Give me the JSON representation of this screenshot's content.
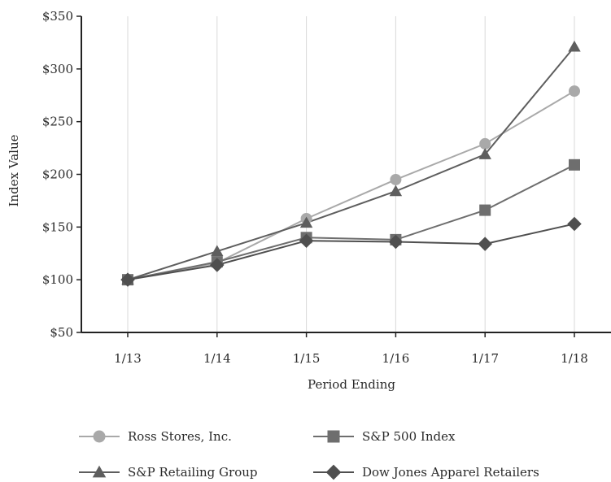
{
  "chart_data": {
    "type": "line",
    "xlabel": "Period Ending",
    "ylabel": "Index Value",
    "categories": [
      "1/13",
      "1/14",
      "1/15",
      "1/16",
      "1/17",
      "1/18"
    ],
    "ylim": [
      50,
      350
    ],
    "yticks": [
      {
        "value": 50,
        "label": "$50"
      },
      {
        "value": 100,
        "label": "$100"
      },
      {
        "value": 150,
        "label": "$150"
      },
      {
        "value": 200,
        "label": "$200"
      },
      {
        "value": 250,
        "label": "$250"
      },
      {
        "value": 300,
        "label": "$300"
      },
      {
        "value": 350,
        "label": "$350"
      }
    ],
    "grid": "vertical",
    "legend_position": "bottom",
    "series": [
      {
        "name": "Ross Stores, Inc.",
        "marker": "circle",
        "color": "#a9a9a9",
        "values": [
          100,
          116,
          158,
          195,
          229,
          279
        ]
      },
      {
        "name": "S&P 500 Index",
        "marker": "square",
        "color": "#6e6e6e",
        "values": [
          100,
          117,
          140,
          138,
          166,
          209
        ]
      },
      {
        "name": "S&P Retailing Group",
        "marker": "triangle",
        "color": "#5e5e5e",
        "values": [
          100,
          127,
          154,
          184,
          219,
          321
        ]
      },
      {
        "name": "Dow Jones Apparel Retailers",
        "marker": "diamond",
        "color": "#4f4f4f",
        "values": [
          100,
          114,
          137,
          136,
          134,
          153
        ]
      }
    ]
  }
}
